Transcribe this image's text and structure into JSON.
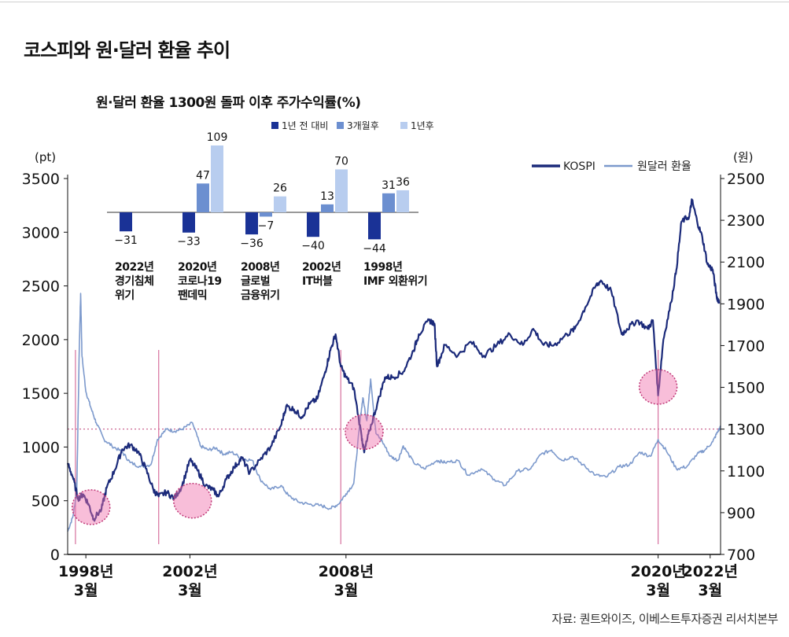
{
  "header": {
    "title": "코스피와 원·달러 환율 추이",
    "source": "자료: 퀀트와이즈, 이베스트투자증권 리서치본부"
  },
  "chart_data": {
    "type": "line",
    "title": "코스피와 원·달러 환율 추이",
    "y_left": {
      "unit": "(pt)",
      "ticks": [
        0,
        500,
        1000,
        1500,
        2000,
        2500,
        3000,
        3500
      ],
      "range": [
        0,
        3500
      ]
    },
    "y_right": {
      "unit": "(원)",
      "ticks": [
        700,
        900,
        1100,
        1300,
        1500,
        1700,
        1900,
        2100,
        2300,
        2500
      ],
      "range": [
        700,
        2500
      ]
    },
    "x_range": [
      1997.5,
      2022.6
    ],
    "x_labels": [
      {
        "x": 1998.2,
        "line1": "1998년",
        "line2": "3월"
      },
      {
        "x": 2002.2,
        "line1": "2002년",
        "line2": "3월"
      },
      {
        "x": 2008.2,
        "line1": "2008년",
        "line2": "3월"
      },
      {
        "x": 2020.2,
        "line1": "2020년",
        "line2": "3월"
      },
      {
        "x": 2022.2,
        "line1": "2022년",
        "line2": "3월"
      }
    ],
    "legend": {
      "position": "top-right"
    },
    "series": [
      {
        "name": "KOSPI",
        "axis": "left",
        "color": "#1b2a7a",
        "points": [
          [
            1997.5,
            850
          ],
          [
            1997.7,
            720
          ],
          [
            1997.9,
            520
          ],
          [
            1998.1,
            560
          ],
          [
            1998.3,
            470
          ],
          [
            1998.5,
            330
          ],
          [
            1998.8,
            420
          ],
          [
            1999.0,
            620
          ],
          [
            1999.3,
            780
          ],
          [
            1999.6,
            980
          ],
          [
            1999.9,
            1020
          ],
          [
            2000.2,
            960
          ],
          [
            2000.5,
            800
          ],
          [
            2000.8,
            600
          ],
          [
            2001.0,
            540
          ],
          [
            2001.3,
            580
          ],
          [
            2001.6,
            520
          ],
          [
            2001.9,
            640
          ],
          [
            2002.2,
            880
          ],
          [
            2002.5,
            780
          ],
          [
            2002.8,
            640
          ],
          [
            2003.1,
            600
          ],
          [
            2003.3,
            540
          ],
          [
            2003.6,
            700
          ],
          [
            2003.9,
            810
          ],
          [
            2004.2,
            900
          ],
          [
            2004.5,
            760
          ],
          [
            2004.9,
            880
          ],
          [
            2005.3,
            1000
          ],
          [
            2005.7,
            1200
          ],
          [
            2005.9,
            1380
          ],
          [
            2006.2,
            1350
          ],
          [
            2006.5,
            1280
          ],
          [
            2006.8,
            1400
          ],
          [
            2007.1,
            1450
          ],
          [
            2007.4,
            1700
          ],
          [
            2007.6,
            1900
          ],
          [
            2007.8,
            2050
          ],
          [
            2008.0,
            1750
          ],
          [
            2008.2,
            1650
          ],
          [
            2008.5,
            1550
          ],
          [
            2008.8,
            1100
          ],
          [
            2008.9,
            950
          ],
          [
            2009.1,
            1150
          ],
          [
            2009.4,
            1400
          ],
          [
            2009.7,
            1650
          ],
          [
            2010.0,
            1650
          ],
          [
            2010.4,
            1700
          ],
          [
            2010.8,
            1900
          ],
          [
            2011.0,
            2050
          ],
          [
            2011.4,
            2180
          ],
          [
            2011.6,
            2150
          ],
          [
            2011.7,
            1750
          ],
          [
            2012.0,
            1950
          ],
          [
            2012.5,
            1850
          ],
          [
            2013.0,
            1980
          ],
          [
            2013.5,
            1850
          ],
          [
            2014.0,
            1950
          ],
          [
            2014.5,
            2050
          ],
          [
            2015.0,
            1950
          ],
          [
            2015.4,
            2100
          ],
          [
            2015.8,
            1950
          ],
          [
            2016.2,
            1950
          ],
          [
            2016.7,
            2050
          ],
          [
            2017.0,
            2100
          ],
          [
            2017.4,
            2300
          ],
          [
            2017.8,
            2500
          ],
          [
            2018.0,
            2550
          ],
          [
            2018.4,
            2450
          ],
          [
            2018.8,
            2050
          ],
          [
            2019.0,
            2100
          ],
          [
            2019.4,
            2180
          ],
          [
            2019.8,
            2100
          ],
          [
            2020.0,
            2180
          ],
          [
            2020.2,
            1480
          ],
          [
            2020.4,
            2000
          ],
          [
            2020.7,
            2350
          ],
          [
            2020.9,
            2650
          ],
          [
            2021.1,
            3100
          ],
          [
            2021.4,
            3150
          ],
          [
            2021.5,
            3300
          ],
          [
            2021.7,
            3100
          ],
          [
            2021.9,
            2950
          ],
          [
            2022.1,
            2700
          ],
          [
            2022.3,
            2650
          ],
          [
            2022.45,
            2400
          ],
          [
            2022.55,
            2350
          ]
        ]
      },
      {
        "name": "원달러 환율",
        "axis": "right",
        "color": "#7c99cc",
        "points": [
          [
            1997.5,
            810
          ],
          [
            1997.7,
            880
          ],
          [
            1997.85,
            1000
          ],
          [
            1997.95,
            1700
          ],
          [
            1998.0,
            1950
          ],
          [
            1998.05,
            1650
          ],
          [
            1998.2,
            1480
          ],
          [
            1998.4,
            1400
          ],
          [
            1998.6,
            1330
          ],
          [
            1998.9,
            1250
          ],
          [
            1999.2,
            1220
          ],
          [
            1999.6,
            1190
          ],
          [
            1999.9,
            1140
          ],
          [
            2000.3,
            1120
          ],
          [
            2000.7,
            1130
          ],
          [
            2000.95,
            1250
          ],
          [
            2001.3,
            1300
          ],
          [
            2001.6,
            1290
          ],
          [
            2001.9,
            1300
          ],
          [
            2002.3,
            1330
          ],
          [
            2002.6,
            1220
          ],
          [
            2002.9,
            1200
          ],
          [
            2003.2,
            1210
          ],
          [
            2003.5,
            1180
          ],
          [
            2003.8,
            1190
          ],
          [
            2004.2,
            1160
          ],
          [
            2004.6,
            1150
          ],
          [
            2004.9,
            1060
          ],
          [
            2005.3,
            1010
          ],
          [
            2005.7,
            1030
          ],
          [
            2006.0,
            980
          ],
          [
            2006.4,
            950
          ],
          [
            2006.8,
            940
          ],
          [
            2007.2,
            935
          ],
          [
            2007.6,
            920
          ],
          [
            2007.9,
            940
          ],
          [
            2008.2,
            990
          ],
          [
            2008.5,
            1040
          ],
          [
            2008.75,
            1350
          ],
          [
            2008.85,
            1450
          ],
          [
            2009.0,
            1340
          ],
          [
            2009.15,
            1540
          ],
          [
            2009.35,
            1280
          ],
          [
            2009.6,
            1240
          ],
          [
            2009.9,
            1170
          ],
          [
            2010.2,
            1150
          ],
          [
            2010.4,
            1220
          ],
          [
            2010.8,
            1140
          ],
          [
            2011.2,
            1110
          ],
          [
            2011.7,
            1150
          ],
          [
            2012.0,
            1140
          ],
          [
            2012.5,
            1150
          ],
          [
            2012.9,
            1080
          ],
          [
            2013.4,
            1110
          ],
          [
            2013.9,
            1060
          ],
          [
            2014.3,
            1030
          ],
          [
            2014.8,
            1100
          ],
          [
            2015.3,
            1110
          ],
          [
            2015.7,
            1180
          ],
          [
            2016.1,
            1200
          ],
          [
            2016.5,
            1150
          ],
          [
            2016.9,
            1170
          ],
          [
            2017.3,
            1130
          ],
          [
            2017.8,
            1080
          ],
          [
            2018.2,
            1070
          ],
          [
            2018.7,
            1120
          ],
          [
            2019.1,
            1130
          ],
          [
            2019.5,
            1190
          ],
          [
            2019.9,
            1170
          ],
          [
            2020.2,
            1250
          ],
          [
            2020.5,
            1200
          ],
          [
            2020.9,
            1110
          ],
          [
            2021.3,
            1120
          ],
          [
            2021.7,
            1180
          ],
          [
            2022.0,
            1200
          ],
          [
            2022.3,
            1240
          ],
          [
            2022.5,
            1290
          ],
          [
            2022.6,
            1310
          ]
        ]
      }
    ],
    "reference_lines": [
      {
        "type": "horizontal",
        "axis": "right",
        "value": 1300
      },
      {
        "type": "vertical",
        "x": 1997.8
      },
      {
        "type": "vertical",
        "x": 2001.0
      },
      {
        "type": "vertical",
        "x": 2008.0
      },
      {
        "type": "vertical",
        "x": 2020.2
      }
    ],
    "highlight_circles": [
      {
        "x": 1998.4,
        "y": 440,
        "axis": "left"
      },
      {
        "x": 2002.3,
        "y": 500,
        "axis": "left"
      },
      {
        "x": 2008.9,
        "y": 1140,
        "axis": "left"
      },
      {
        "x": 2020.2,
        "y": 1560,
        "axis": "left"
      }
    ],
    "inset": {
      "type": "bar",
      "title": "원·달러 환율 1300원 돌파 이후 주가수익률(%)",
      "series": [
        {
          "name": "1년 전 대비",
          "color": "#1a3296"
        },
        {
          "name": "3개월후",
          "color": "#6c8fd0"
        },
        {
          "name": "1년후",
          "color": "#b8cdef"
        }
      ],
      "categories": [
        {
          "line1": "2022년",
          "line2": "경기침체",
          "line3": "위기",
          "values": [
            -31,
            null,
            null
          ]
        },
        {
          "line1": "2020년",
          "line2": "코로나19",
          "line3": "팬데믹",
          "values": [
            -33,
            47,
            109
          ]
        },
        {
          "line1": "2008년",
          "line2": "글로벌",
          "line3": "금융위기",
          "values": [
            -36,
            -7,
            26
          ]
        },
        {
          "line1": "2002년",
          "line2": "IT버블",
          "line3": "",
          "values": [
            -40,
            13,
            70
          ]
        },
        {
          "line1": "1998년",
          "line2": "IMF 외환위기",
          "line3": "",
          "values": [
            -44,
            31,
            36
          ]
        }
      ],
      "value_labels": [
        [
          "−31",
          "",
          ""
        ],
        [
          "−33",
          "47",
          "109"
        ],
        [
          "−36",
          "−7",
          "26"
        ],
        [
          "−40",
          "13",
          "70"
        ],
        [
          "−44",
          "31",
          "36"
        ]
      ]
    }
  }
}
